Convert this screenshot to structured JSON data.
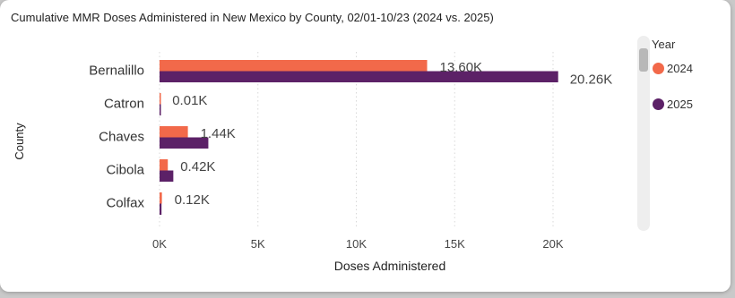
{
  "colors": {
    "series_2024": "#f2694a",
    "series_2025": "#5c2167",
    "grid": "#d8d8d8",
    "text": "#333333"
  },
  "legend": {
    "title": "Year",
    "items": [
      "2024",
      "2025"
    ]
  },
  "chart_data": {
    "type": "bar",
    "orientation": "horizontal",
    "title": "Cumulative MMR Doses Administered in New Mexico by County, 02/01-10/23 (2024 vs. 2025)",
    "xlabel": "Doses Administered",
    "ylabel": "County",
    "categories": [
      "Bernalillo",
      "Catron",
      "Chaves",
      "Cibola",
      "Colfax"
    ],
    "series": [
      {
        "name": "2024",
        "values": [
          13600,
          10,
          1440,
          420,
          120
        ],
        "labels": [
          "13.60K",
          "0.01K",
          "1.44K",
          "0.42K",
          "0.12K"
        ]
      },
      {
        "name": "2025",
        "values": [
          20260,
          12,
          2480,
          700,
          100
        ],
        "labels": [
          "20.26K",
          "",
          "",
          "",
          ""
        ]
      }
    ],
    "xlim": [
      0,
      22000
    ],
    "xticks": [
      0,
      5000,
      10000,
      15000,
      20000
    ],
    "xtick_labels": [
      "0K",
      "5K",
      "10K",
      "15K",
      "20K"
    ],
    "grid": true,
    "legend_position": "right"
  }
}
